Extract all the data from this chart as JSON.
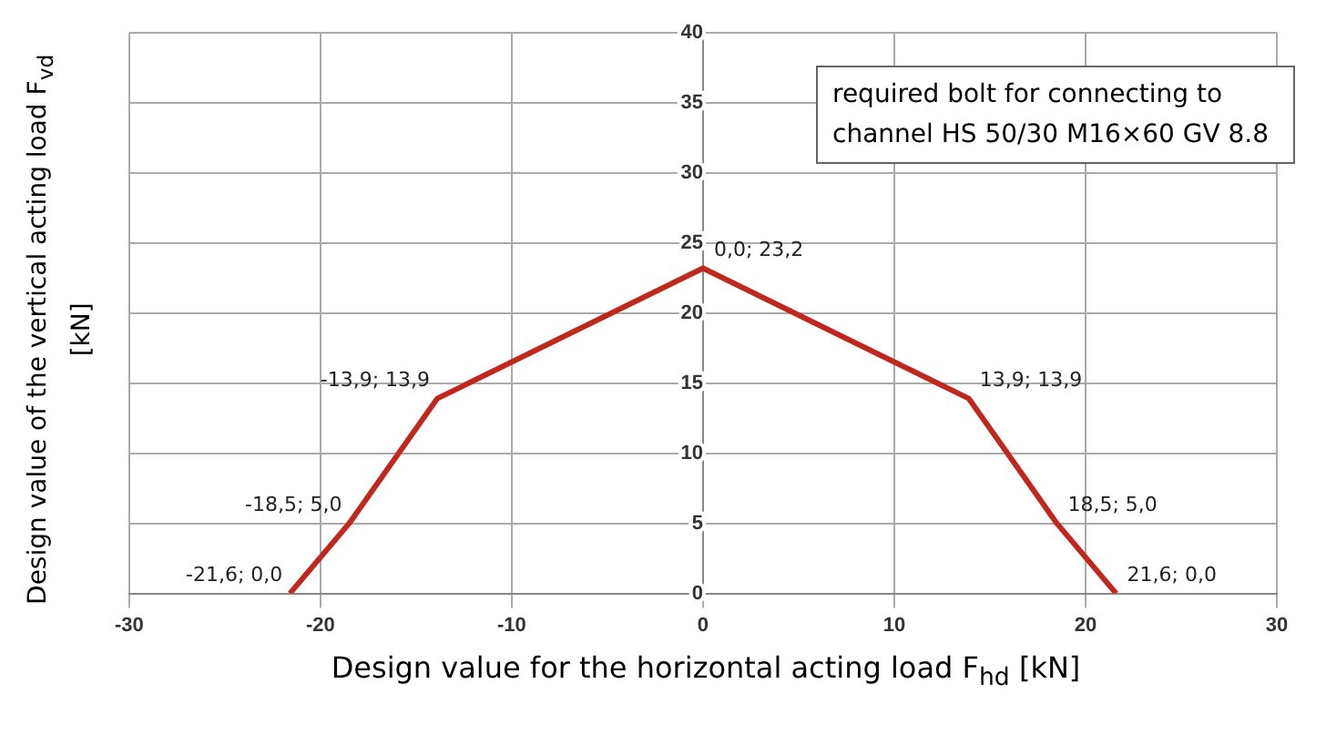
{
  "chart_data": {
    "type": "line",
    "xlabel": "Design value for the horizontal acting load F$_{hd}$ [kN]",
    "ylabel": "Design value of the vertical acting load F$_{vd}$ [kN]",
    "annotations": [
      "required bolt for connecting to channel HS 50/30 M16×60 GV 8.8"
    ],
    "x": [
      -21.6,
      -18.5,
      -13.9,
      0,
      13.9,
      18.5,
      21.6
    ],
    "series": [
      {
        "color": "#c0281e",
        "values": [
          0,
          5,
          13.9,
          23.2,
          13.9,
          5,
          0
        ],
        "value_labels": [
          "-21,6; 0,0",
          "-18,5; 5,0",
          "-13,9; 13,9",
          "0,0; 23,2",
          "13,9; 13,9",
          "18,5; 5,0",
          "21,6; 0,0"
        ]
      }
    ],
    "xlim": [
      -30,
      30
    ],
    "xticks": [
      -30,
      -20,
      -10,
      0,
      10,
      20,
      30
    ],
    "ylim": [
      0,
      40
    ],
    "yticks": [
      0,
      5,
      10,
      15,
      20,
      25,
      30,
      35,
      40
    ],
    "grid": true,
    "marker": "none",
    "line_style": "solid"
  }
}
